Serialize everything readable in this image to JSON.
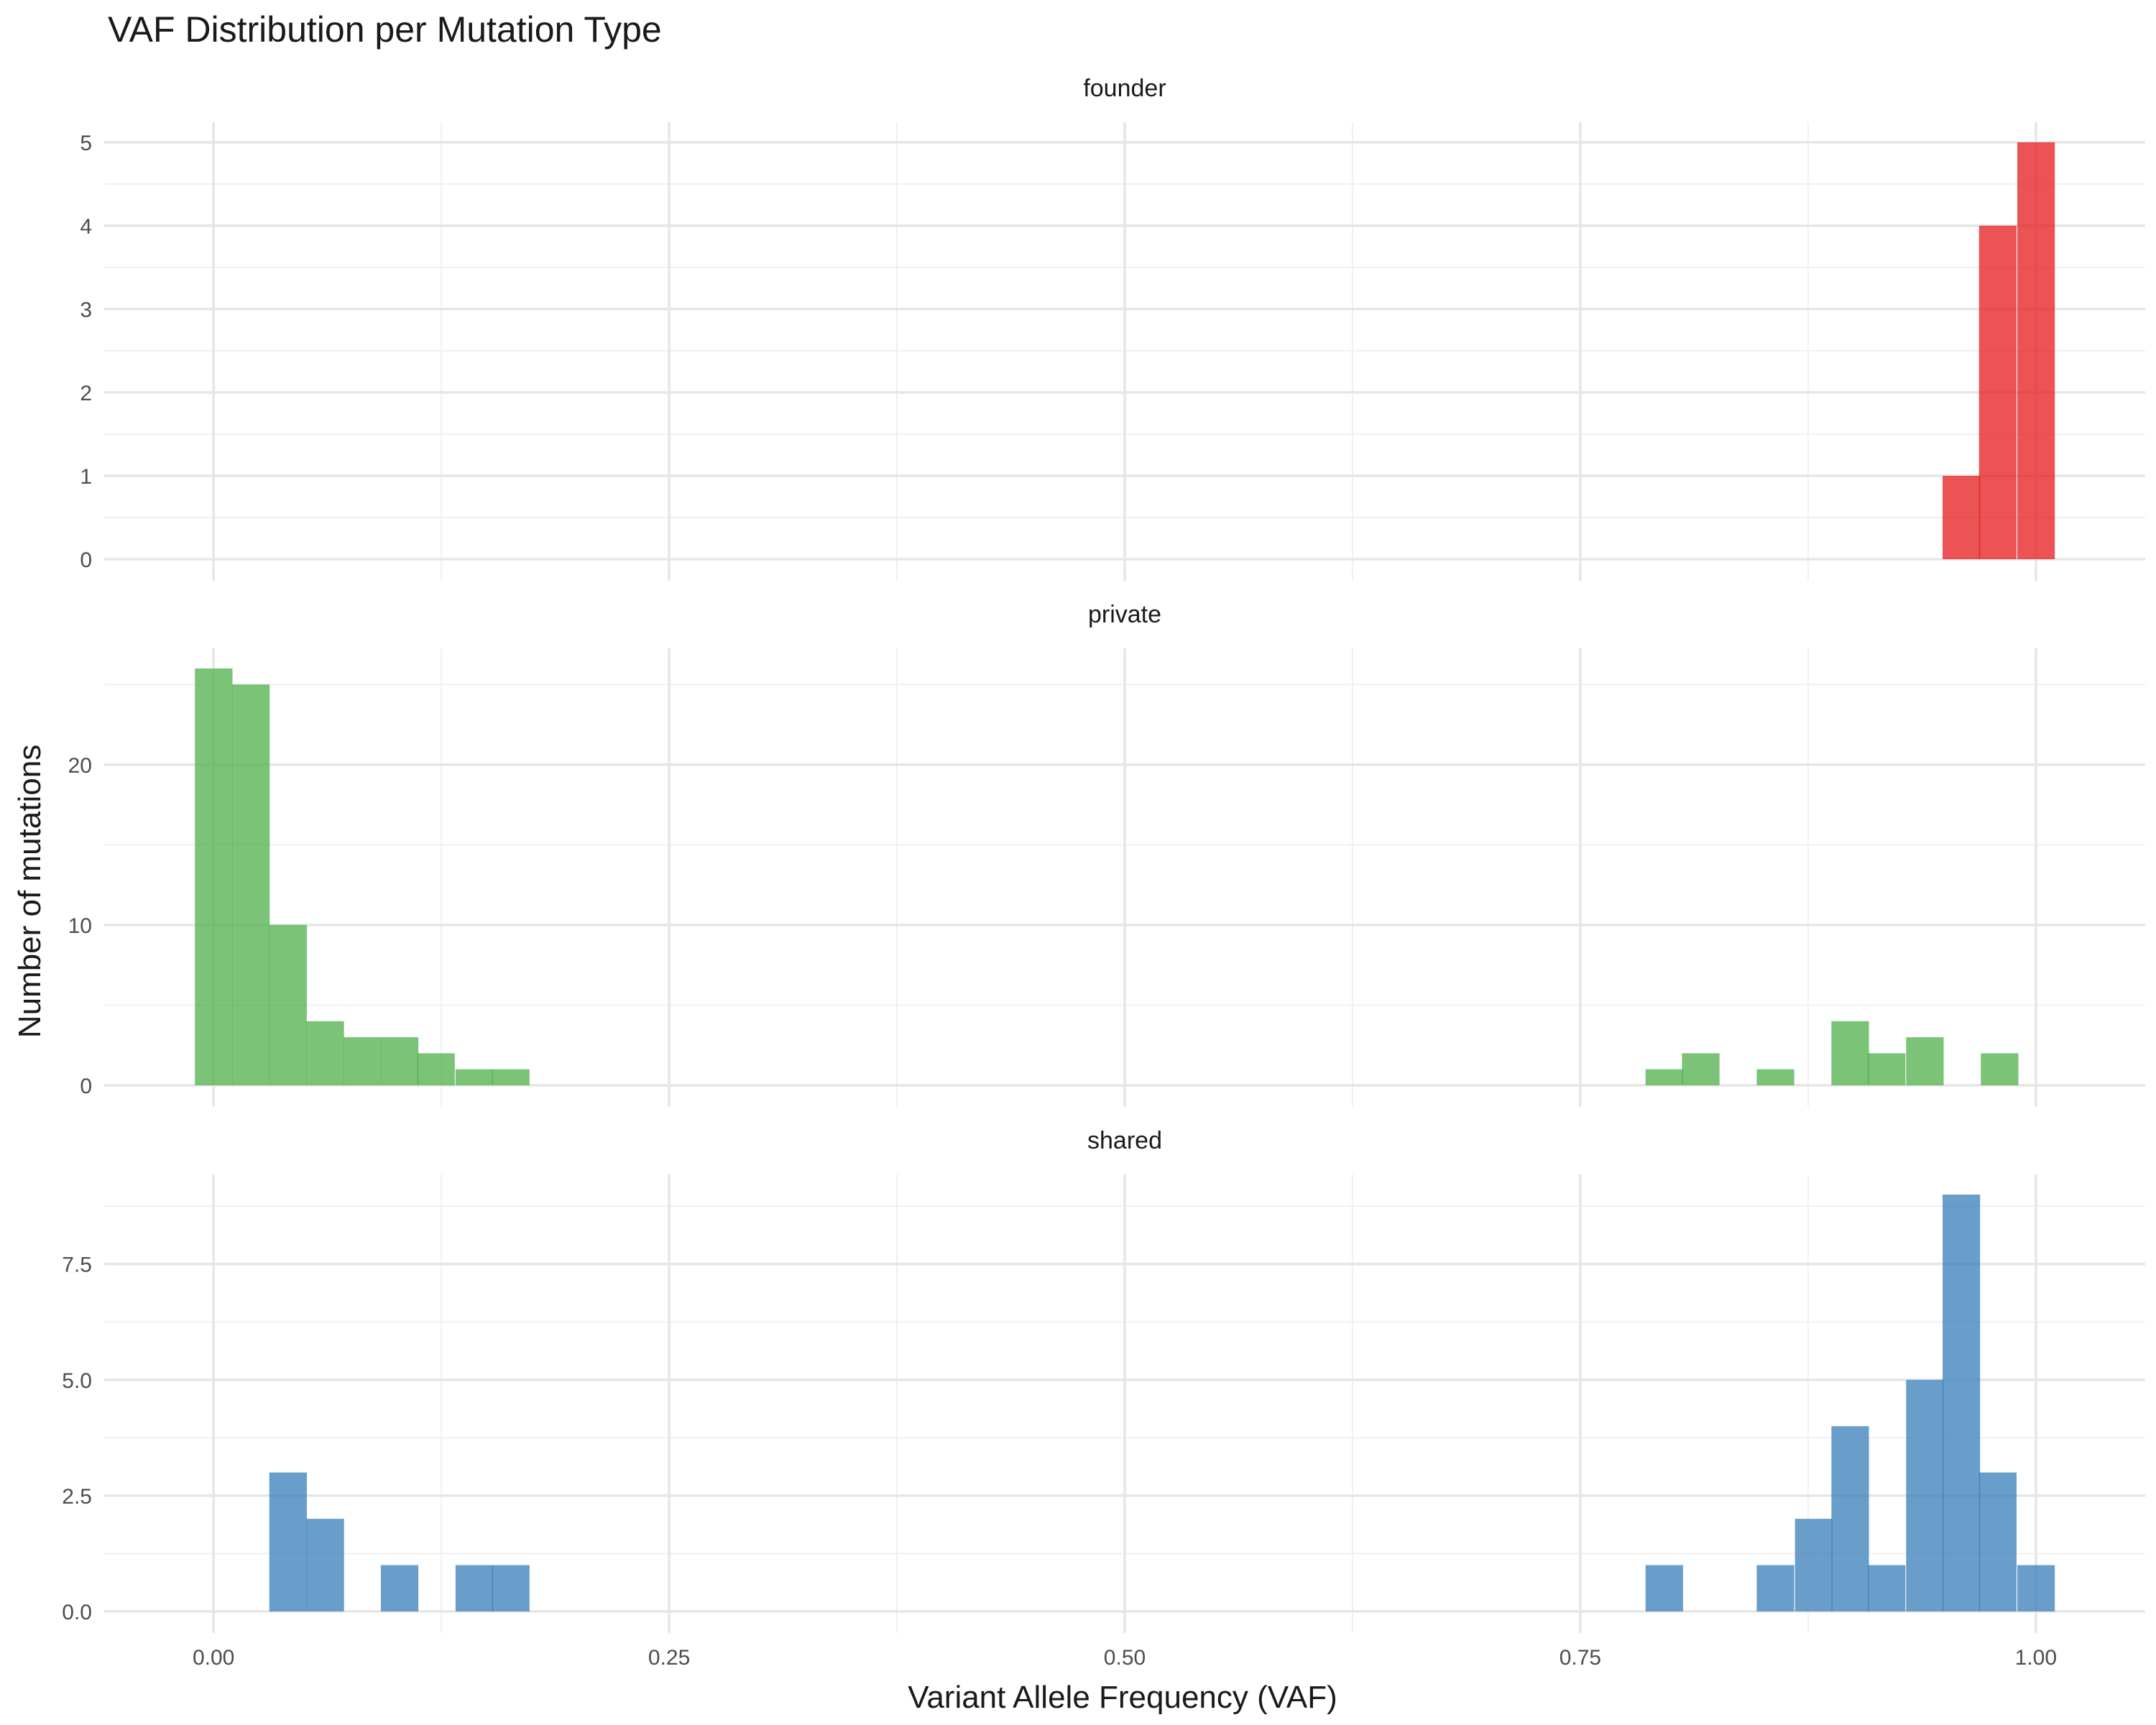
{
  "chart_data": {
    "type": "bar",
    "subtype": "faceted-histogram",
    "title": "VAF Distribution per Mutation Type",
    "xlabel": "Variant Allele Frequency (VAF)",
    "ylabel": "Number of mutations",
    "xlim": [
      -0.06,
      1.06
    ],
    "x_ticks": [
      0,
      0.25,
      0.5,
      0.75,
      1
    ],
    "x_tick_labels": [
      "0.00",
      "0.25",
      "0.50",
      "0.75",
      "1.00"
    ],
    "bin_width": 0.0204,
    "grid": true,
    "legend": "none",
    "facets": [
      {
        "name": "founder",
        "color": "#e41a1c",
        "ylim": [
          0,
          5
        ],
        "y_ticks": [
          0,
          1,
          2,
          3,
          4,
          5
        ],
        "y_tick_labels": [
          "0",
          "1",
          "2",
          "3",
          "4",
          "5"
        ],
        "bins": [
          {
            "x": 0.959,
            "count": 1
          },
          {
            "x": 0.979,
            "count": 4
          },
          {
            "x": 1.0,
            "count": 5
          }
        ]
      },
      {
        "name": "private",
        "color": "#4daf4a",
        "ylim": [
          0,
          26
        ],
        "y_ticks": [
          0,
          10,
          20
        ],
        "y_tick_labels": [
          "0",
          "10",
          "20"
        ],
        "bins": [
          {
            "x": 0.0,
            "count": 26
          },
          {
            "x": 0.0204,
            "count": 25
          },
          {
            "x": 0.0408,
            "count": 10
          },
          {
            "x": 0.0612,
            "count": 4
          },
          {
            "x": 0.0816,
            "count": 3
          },
          {
            "x": 0.102,
            "count": 3
          },
          {
            "x": 0.122,
            "count": 2
          },
          {
            "x": 0.143,
            "count": 1
          },
          {
            "x": 0.163,
            "count": 1
          },
          {
            "x": 0.796,
            "count": 1
          },
          {
            "x": 0.816,
            "count": 2
          },
          {
            "x": 0.857,
            "count": 1
          },
          {
            "x": 0.898,
            "count": 4
          },
          {
            "x": 0.918,
            "count": 2
          },
          {
            "x": 0.939,
            "count": 3
          },
          {
            "x": 0.98,
            "count": 2
          }
        ]
      },
      {
        "name": "shared",
        "color": "#377eb8",
        "ylim": [
          0,
          9
        ],
        "y_ticks": [
          0,
          2.5,
          5,
          7.5
        ],
        "y_tick_labels": [
          "0.0",
          "2.5",
          "5.0",
          "7.5"
        ],
        "bins": [
          {
            "x": 0.0408,
            "count": 3
          },
          {
            "x": 0.0612,
            "count": 2
          },
          {
            "x": 0.102,
            "count": 1
          },
          {
            "x": 0.143,
            "count": 1
          },
          {
            "x": 0.163,
            "count": 1
          },
          {
            "x": 0.796,
            "count": 1
          },
          {
            "x": 0.857,
            "count": 1
          },
          {
            "x": 0.878,
            "count": 2
          },
          {
            "x": 0.898,
            "count": 4
          },
          {
            "x": 0.918,
            "count": 1
          },
          {
            "x": 0.939,
            "count": 5
          },
          {
            "x": 0.959,
            "count": 9
          },
          {
            "x": 0.979,
            "count": 3
          },
          {
            "x": 1.0,
            "count": 1
          }
        ]
      }
    ]
  }
}
